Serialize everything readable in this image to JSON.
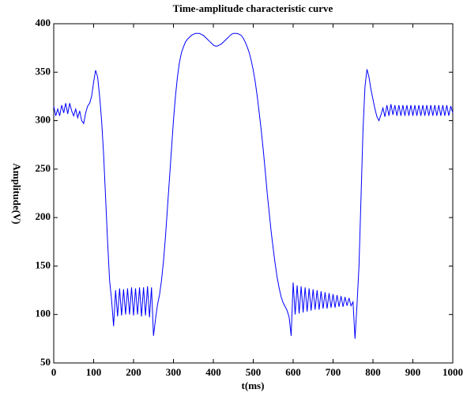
{
  "chart_data": {
    "type": "line",
    "title": "Time-amplitude characteristic curve",
    "x_label": "t(ms)",
    "y_label": "Amplitude(V)",
    "x": [
      0,
      5,
      10,
      15,
      20,
      25,
      30,
      35,
      40,
      45,
      50,
      55,
      60,
      65,
      70,
      75,
      80,
      85,
      90,
      95,
      100,
      105,
      110,
      115,
      120,
      125,
      130,
      135,
      140,
      145,
      150,
      155,
      160,
      165,
      170,
      175,
      180,
      185,
      190,
      195,
      200,
      205,
      210,
      215,
      220,
      225,
      230,
      235,
      240,
      245,
      250,
      255,
      260,
      265,
      270,
      275,
      280,
      285,
      290,
      295,
      300,
      305,
      310,
      315,
      320,
      325,
      330,
      335,
      340,
      345,
      350,
      355,
      360,
      365,
      370,
      375,
      380,
      385,
      390,
      395,
      400,
      405,
      410,
      415,
      420,
      425,
      430,
      435,
      440,
      445,
      450,
      455,
      460,
      465,
      470,
      475,
      480,
      485,
      490,
      495,
      500,
      505,
      510,
      515,
      520,
      525,
      530,
      535,
      540,
      545,
      550,
      555,
      560,
      565,
      570,
      575,
      580,
      585,
      590,
      595,
      600,
      605,
      610,
      615,
      620,
      625,
      630,
      635,
      640,
      645,
      650,
      655,
      660,
      665,
      670,
      675,
      680,
      685,
      690,
      695,
      700,
      705,
      710,
      715,
      720,
      725,
      730,
      735,
      740,
      745,
      750,
      755,
      760,
      765,
      770,
      775,
      780,
      785,
      790,
      795,
      800,
      805,
      810,
      815,
      820,
      825,
      830,
      835,
      840,
      845,
      850,
      855,
      860,
      865,
      870,
      875,
      880,
      885,
      890,
      895,
      900,
      905,
      910,
      915,
      920,
      925,
      930,
      935,
      940,
      945,
      950,
      955,
      960,
      965,
      970,
      975,
      980,
      985,
      990,
      995,
      1000
    ],
    "series": [
      {
        "color": "#0000ff",
        "values": [
          315,
          305,
          312,
          305,
          316,
          308,
          318,
          307,
          318,
          310,
          305,
          312,
          303,
          310,
          300,
          297,
          308,
          315,
          318,
          325,
          340,
          352,
          345,
          325,
          300,
          265,
          220,
          175,
          135,
          115,
          88,
          125,
          98,
          127,
          99,
          126,
          100,
          127,
          100,
          128,
          99,
          127,
          100,
          128,
          98,
          128,
          99,
          129,
          97,
          128,
          78,
          95,
          110,
          120,
          135,
          155,
          180,
          210,
          240,
          270,
          300,
          325,
          345,
          360,
          370,
          376,
          381,
          384,
          386,
          388,
          389,
          390,
          390,
          390,
          389,
          388,
          386,
          384,
          382,
          380,
          378,
          377,
          377,
          378,
          379,
          381,
          383,
          385,
          387,
          389,
          390,
          390,
          390,
          389,
          388,
          385,
          381,
          376,
          370,
          362,
          352,
          340,
          325,
          308,
          290,
          270,
          248,
          225,
          205,
          185,
          168,
          152,
          138,
          127,
          118,
          112,
          108,
          104,
          97,
          78,
          133,
          100,
          130,
          101,
          129,
          102,
          128,
          103,
          127,
          104,
          126,
          105,
          125,
          105,
          124,
          106,
          123,
          106,
          122,
          107,
          121,
          107,
          120,
          108,
          119,
          108,
          118,
          109,
          117,
          109,
          113,
          75,
          110,
          150,
          220,
          290,
          335,
          353,
          345,
          332,
          322,
          312,
          304,
          300,
          306,
          313,
          304,
          316,
          305,
          317,
          306,
          316,
          305,
          316,
          305,
          316,
          305,
          316,
          305,
          316,
          305,
          316,
          305,
          316,
          305,
          316,
          305,
          316,
          305,
          316,
          305,
          316,
          305,
          316,
          305,
          316,
          305,
          316,
          305,
          315,
          308
        ]
      }
    ],
    "xlim": [
      0,
      1000
    ],
    "xticks": [
      0,
      100,
      200,
      300,
      400,
      500,
      600,
      700,
      800,
      900,
      1000
    ],
    "ylim": [
      50,
      400
    ],
    "yticks": [
      50,
      100,
      150,
      200,
      250,
      300,
      350,
      400
    ],
    "grid": false
  }
}
